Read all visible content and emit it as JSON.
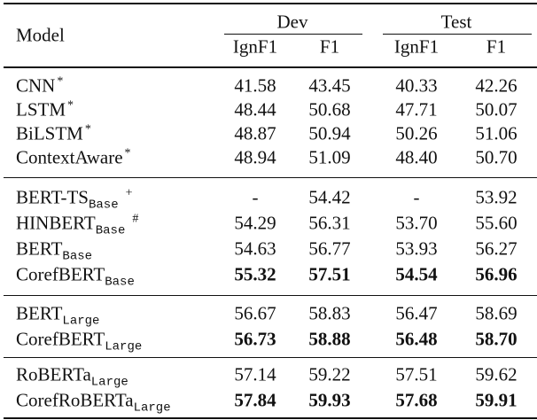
{
  "header": {
    "model": "Model",
    "groups": [
      "Dev",
      "Test"
    ],
    "columns": [
      "IgnF1",
      "F1",
      "IgnF1",
      "F1"
    ]
  },
  "sections": [
    {
      "rows": [
        {
          "name": "CNN",
          "sup": "*",
          "cells": [
            "41.58",
            "43.45",
            "40.33",
            "42.26"
          ]
        },
        {
          "name": "LSTM",
          "sup": "*",
          "cells": [
            "48.44",
            "50.68",
            "47.71",
            "50.07"
          ]
        },
        {
          "name": "BiLSTM",
          "sup": "*",
          "cells": [
            "48.87",
            "50.94",
            "50.26",
            "51.06"
          ]
        },
        {
          "name": "ContextAware",
          "sup": "*",
          "cells": [
            "48.94",
            "51.09",
            "48.40",
            "50.70"
          ]
        }
      ]
    },
    {
      "rows": [
        {
          "name": "BERT-TS",
          "sub": "Base",
          "sup": "+",
          "cells": [
            "-",
            "54.42",
            "-",
            "53.92"
          ]
        },
        {
          "name": "HINBERT",
          "sub": "Base",
          "sup": "#",
          "cells": [
            "54.29",
            "56.31",
            "53.70",
            "55.60"
          ]
        },
        {
          "name": "BERT",
          "sub": "Base",
          "cells": [
            "54.63",
            "56.77",
            "53.93",
            "56.27"
          ]
        },
        {
          "name": "CorefBERT",
          "sub": "Base",
          "bold": true,
          "cells": [
            "55.32",
            "57.51",
            "54.54",
            "56.96"
          ]
        }
      ]
    },
    {
      "rows": [
        {
          "name": "BERT",
          "sub": "Large",
          "cells": [
            "56.67",
            "58.83",
            "56.47",
            "58.69"
          ]
        },
        {
          "name": "CorefBERT",
          "sub": "Large",
          "bold": true,
          "cells": [
            "56.73",
            "58.88",
            "56.48",
            "58.70"
          ]
        }
      ]
    },
    {
      "rows": [
        {
          "name": "RoBERTa",
          "sub": "Large",
          "cells": [
            "57.14",
            "59.22",
            "57.51",
            "59.62"
          ]
        },
        {
          "name": "CorefRoBERTa",
          "sub": "Large",
          "bold": true,
          "cells": [
            "57.84",
            "59.93",
            "57.68",
            "59.91"
          ]
        }
      ]
    }
  ]
}
